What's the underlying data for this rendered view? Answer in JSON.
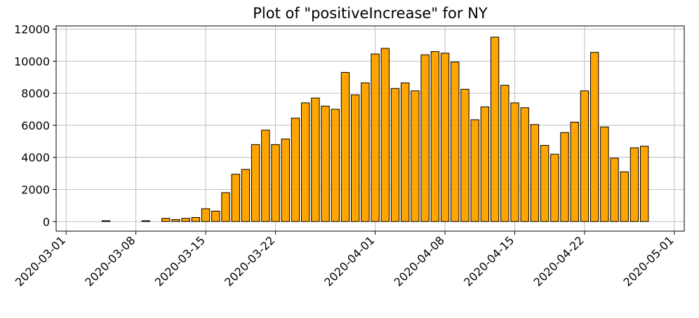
{
  "chart_data": {
    "type": "bar",
    "title": "Plot of \"positiveIncrease\" for NY",
    "xlabel": "",
    "ylabel": "",
    "bar_color": "#FFA500",
    "bar_edge_color": "#000000",
    "grid": true,
    "xlim": [
      "2020-02-29",
      "2020-05-02"
    ],
    "ylim": [
      -600,
      12200
    ],
    "x_ticks": [
      "2020-03-01",
      "2020-03-08",
      "2020-03-15",
      "2020-03-22",
      "2020-04-01",
      "2020-04-08",
      "2020-04-15",
      "2020-04-22",
      "2020-05-01"
    ],
    "y_ticks": [
      0,
      2000,
      4000,
      6000,
      8000,
      10000,
      12000
    ],
    "x": [
      "2020-03-03",
      "2020-03-04",
      "2020-03-05",
      "2020-03-06",
      "2020-03-07",
      "2020-03-08",
      "2020-03-09",
      "2020-03-10",
      "2020-03-11",
      "2020-03-12",
      "2020-03-13",
      "2020-03-14",
      "2020-03-15",
      "2020-03-16",
      "2020-03-17",
      "2020-03-18",
      "2020-03-19",
      "2020-03-20",
      "2020-03-21",
      "2020-03-22",
      "2020-03-23",
      "2020-03-24",
      "2020-03-25",
      "2020-03-26",
      "2020-03-27",
      "2020-03-28",
      "2020-03-29",
      "2020-03-30",
      "2020-03-31",
      "2020-04-01",
      "2020-04-02",
      "2020-04-03",
      "2020-04-04",
      "2020-04-05",
      "2020-04-06",
      "2020-04-07",
      "2020-04-08",
      "2020-04-09",
      "2020-04-10",
      "2020-04-11",
      "2020-04-12",
      "2020-04-13",
      "2020-04-14",
      "2020-04-15",
      "2020-04-16",
      "2020-04-17",
      "2020-04-18",
      "2020-04-19",
      "2020-04-20",
      "2020-04-21",
      "2020-04-22",
      "2020-04-23",
      "2020-04-24",
      "2020-04-25",
      "2020-04-26",
      "2020-04-27",
      "2020-04-28",
      "2020-04-29",
      "2020-04-30"
    ],
    "values": [
      0,
      0,
      50,
      0,
      0,
      0,
      50,
      0,
      200,
      120,
      200,
      250,
      800,
      650,
      1800,
      2950,
      3250,
      4800,
      5700,
      4800,
      5150,
      6450,
      7400,
      7700,
      7200,
      7000,
      9300,
      7900,
      8650,
      10450,
      10800,
      8300,
      8650,
      8150,
      10400,
      10600,
      10500,
      9950,
      8250,
      6350,
      7150,
      11500,
      8500,
      7400,
      7100,
      6050,
      4750,
      4200,
      5550,
      6200,
      8150,
      10550,
      5900,
      3950,
      3100,
      4600,
      4700,
      0,
      0
    ]
  }
}
